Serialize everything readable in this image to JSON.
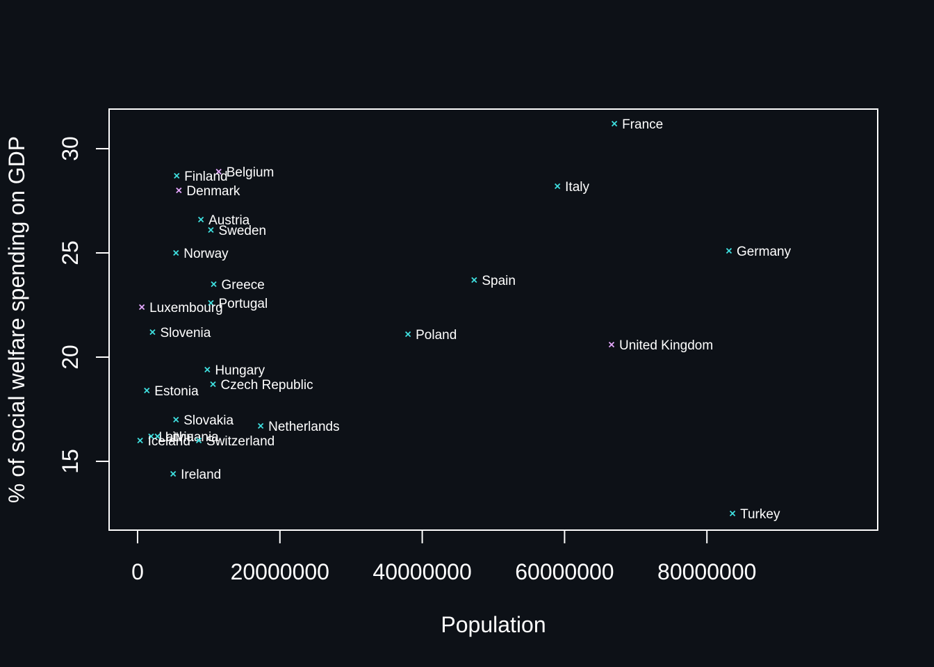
{
  "chart_data": {
    "type": "scatter",
    "xlabel": "Population",
    "ylabel": "% of social welfare spending on GDP",
    "x_ticks": [
      0,
      20000000,
      40000000,
      60000000,
      80000000
    ],
    "x_tick_labels": [
      "0",
      "20000000",
      "40000000",
      "60000000",
      "80000000"
    ],
    "y_ticks": [
      15,
      20,
      25,
      30
    ],
    "y_tick_labels": [
      "15",
      "20",
      "25",
      "30"
    ],
    "xlim": [
      -4000000,
      104000000
    ],
    "ylim": [
      11.7,
      31.9
    ],
    "grid": false,
    "colors": {
      "group_a": "#3fe0e0",
      "group_b": "#e6a8ff"
    },
    "points": [
      {
        "label": "France",
        "x": 67000000,
        "y": 31.2,
        "group": "group_a"
      },
      {
        "label": "Belgium",
        "x": 11400000,
        "y": 28.9,
        "group": "group_b"
      },
      {
        "label": "Finland",
        "x": 5500000,
        "y": 28.7,
        "group": "group_a"
      },
      {
        "label": "Italy",
        "x": 59000000,
        "y": 28.2,
        "group": "group_a"
      },
      {
        "label": "Denmark",
        "x": 5800000,
        "y": 28.0,
        "group": "group_b"
      },
      {
        "label": "Austria",
        "x": 8900000,
        "y": 26.6,
        "group": "group_a"
      },
      {
        "label": "Sweden",
        "x": 10300000,
        "y": 26.1,
        "group": "group_a"
      },
      {
        "label": "Germany",
        "x": 83100000,
        "y": 25.1,
        "group": "group_a"
      },
      {
        "label": "Norway",
        "x": 5400000,
        "y": 25.0,
        "group": "group_a"
      },
      {
        "label": "Spain",
        "x": 47300000,
        "y": 23.7,
        "group": "group_a"
      },
      {
        "label": "Greece",
        "x": 10700000,
        "y": 23.5,
        "group": "group_a"
      },
      {
        "label": "Portugal",
        "x": 10300000,
        "y": 22.6,
        "group": "group_a"
      },
      {
        "label": "Luxembourg",
        "x": 600000,
        "y": 22.4,
        "group": "group_b"
      },
      {
        "label": "Slovenia",
        "x": 2100000,
        "y": 21.2,
        "group": "group_a"
      },
      {
        "label": "Poland",
        "x": 38000000,
        "y": 21.1,
        "group": "group_a"
      },
      {
        "label": "United Kingdom",
        "x": 66600000,
        "y": 20.6,
        "group": "group_b"
      },
      {
        "label": "Hungary",
        "x": 9800000,
        "y": 19.4,
        "group": "group_a"
      },
      {
        "label": "Czech Republic",
        "x": 10600000,
        "y": 18.7,
        "group": "group_a"
      },
      {
        "label": "Estonia",
        "x": 1300000,
        "y": 18.4,
        "group": "group_a"
      },
      {
        "label": "Slovakia",
        "x": 5400000,
        "y": 17.0,
        "group": "group_a"
      },
      {
        "label": "Netherlands",
        "x": 17300000,
        "y": 16.7,
        "group": "group_a"
      },
      {
        "label": "Latvia",
        "x": 1900000,
        "y": 16.2,
        "group": "group_a"
      },
      {
        "label": "Lithuania",
        "x": 2800000,
        "y": 16.2,
        "group": "group_a"
      },
      {
        "label": "Iceland",
        "x": 360000,
        "y": 16.0,
        "group": "group_a"
      },
      {
        "label": "Switzerland",
        "x": 8600000,
        "y": 16.0,
        "group": "group_a"
      },
      {
        "label": "Ireland",
        "x": 5000000,
        "y": 14.4,
        "group": "group_a"
      },
      {
        "label": "Turkey",
        "x": 83600000,
        "y": 12.5,
        "group": "group_a"
      }
    ]
  }
}
